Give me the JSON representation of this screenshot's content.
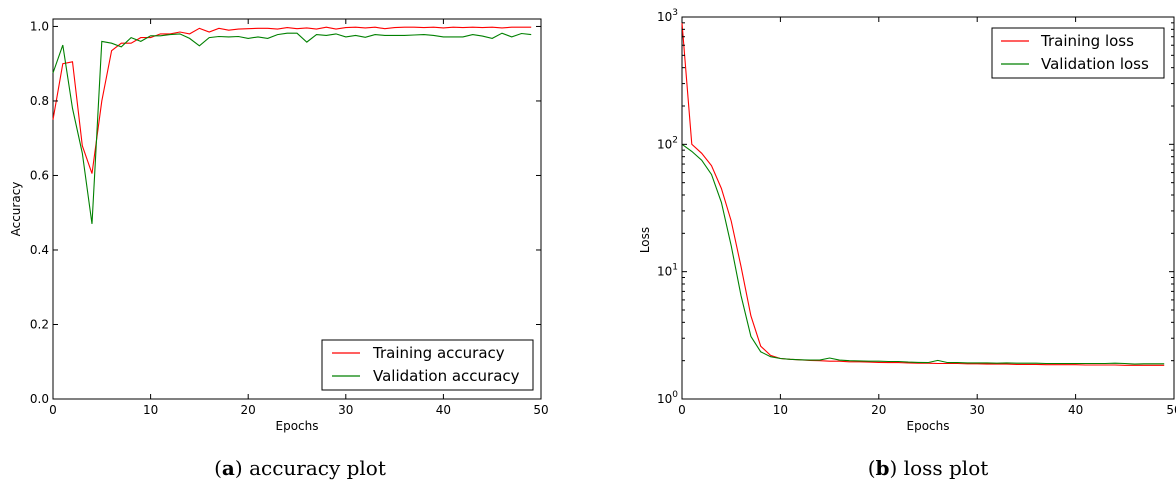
{
  "chart_data": [
    {
      "type": "line",
      "caption_letter": "a",
      "caption_text": "accuracy plot",
      "xlabel": "Epochs",
      "ylabel": "Accuracy",
      "xlim": [
        0,
        50
      ],
      "ylim": [
        0.0,
        1.02
      ],
      "y_scale": "linear",
      "x_ticks": [
        "0",
        "10",
        "20",
        "30",
        "40",
        "50"
      ],
      "x_tick_values": [
        0,
        10,
        20,
        30,
        40,
        50
      ],
      "y_ticks": [
        "0.0",
        "0.2",
        "0.4",
        "0.6",
        "0.8",
        "1.0"
      ],
      "y_tick_values": [
        0.0,
        0.2,
        0.4,
        0.6,
        0.8,
        1.0
      ],
      "grid": false,
      "legend_position": "bottom-right",
      "series": [
        {
          "name": "Training accuracy",
          "color": "#ff0000",
          "x": [
            0,
            1,
            2,
            3,
            4,
            5,
            6,
            7,
            8,
            9,
            10,
            11,
            12,
            13,
            14,
            15,
            16,
            17,
            18,
            19,
            20,
            21,
            22,
            23,
            24,
            25,
            26,
            27,
            28,
            29,
            30,
            31,
            32,
            33,
            34,
            35,
            36,
            37,
            38,
            39,
            40,
            41,
            42,
            43,
            44,
            45,
            46,
            47,
            48,
            49
          ],
          "values": [
            0.75,
            0.9,
            0.905,
            0.68,
            0.605,
            0.8,
            0.935,
            0.955,
            0.955,
            0.97,
            0.97,
            0.98,
            0.98,
            0.985,
            0.98,
            0.995,
            0.985,
            0.995,
            0.99,
            0.993,
            0.994,
            0.995,
            0.995,
            0.993,
            0.997,
            0.994,
            0.996,
            0.993,
            0.998,
            0.993,
            0.997,
            0.998,
            0.996,
            0.998,
            0.994,
            0.997,
            0.998,
            0.998,
            0.997,
            0.998,
            0.996,
            0.998,
            0.997,
            0.998,
            0.997,
            0.998,
            0.996,
            0.998,
            0.998,
            0.998
          ]
        },
        {
          "name": "Validation accuracy",
          "color": "#008000",
          "x": [
            0,
            1,
            2,
            3,
            4,
            5,
            6,
            7,
            8,
            9,
            10,
            11,
            12,
            13,
            14,
            15,
            16,
            17,
            18,
            19,
            20,
            21,
            22,
            23,
            24,
            25,
            26,
            27,
            28,
            29,
            30,
            31,
            32,
            33,
            34,
            35,
            36,
            37,
            38,
            39,
            40,
            41,
            42,
            43,
            44,
            45,
            46,
            47,
            48,
            49
          ],
          "values": [
            0.875,
            0.95,
            0.78,
            0.66,
            0.47,
            0.96,
            0.955,
            0.945,
            0.97,
            0.96,
            0.975,
            0.975,
            0.978,
            0.98,
            0.968,
            0.948,
            0.97,
            0.973,
            0.972,
            0.973,
            0.968,
            0.972,
            0.968,
            0.978,
            0.982,
            0.982,
            0.958,
            0.978,
            0.976,
            0.98,
            0.972,
            0.976,
            0.971,
            0.978,
            0.976,
            0.976,
            0.976,
            0.977,
            0.978,
            0.976,
            0.972,
            0.972,
            0.972,
            0.978,
            0.974,
            0.968,
            0.982,
            0.972,
            0.981,
            0.978
          ]
        }
      ]
    },
    {
      "type": "line",
      "caption_letter": "b",
      "caption_text": "loss plot",
      "xlabel": "Epochs",
      "ylabel": "Loss",
      "xlim": [
        0,
        50
      ],
      "ylim": [
        1,
        1000
      ],
      "y_scale": "log",
      "x_ticks": [
        "0",
        "10",
        "20",
        "30",
        "40",
        "50"
      ],
      "x_tick_values": [
        0,
        10,
        20,
        30,
        40,
        50
      ],
      "y_ticks": [
        {
          "base": "10",
          "exp": "0",
          "value": 1
        },
        {
          "base": "10",
          "exp": "1",
          "value": 10
        },
        {
          "base": "10",
          "exp": "2",
          "value": 100
        },
        {
          "base": "10",
          "exp": "3",
          "value": 1000
        }
      ],
      "grid": false,
      "legend_position": "top-right",
      "series": [
        {
          "name": "Training loss",
          "color": "#ff0000",
          "x": [
            0,
            1,
            2,
            3,
            4,
            5,
            6,
            7,
            8,
            9,
            10,
            11,
            12,
            13,
            14,
            15,
            16,
            17,
            18,
            19,
            20,
            21,
            22,
            23,
            24,
            25,
            26,
            27,
            28,
            29,
            30,
            31,
            32,
            33,
            34,
            35,
            36,
            37,
            38,
            39,
            40,
            41,
            42,
            43,
            44,
            45,
            46,
            47,
            48,
            49
          ],
          "values": [
            900,
            100,
            85,
            68,
            45,
            25,
            11,
            4.5,
            2.6,
            2.2,
            2.08,
            2.05,
            2.03,
            2.01,
            2.0,
            1.98,
            1.98,
            1.96,
            1.96,
            1.95,
            1.94,
            1.93,
            1.93,
            1.92,
            1.91,
            1.91,
            1.9,
            1.9,
            1.9,
            1.89,
            1.89,
            1.88,
            1.88,
            1.88,
            1.87,
            1.87,
            1.87,
            1.86,
            1.86,
            1.86,
            1.86,
            1.85,
            1.85,
            1.85,
            1.85,
            1.84,
            1.84,
            1.84,
            1.84,
            1.84
          ]
        },
        {
          "name": "Validation loss",
          "color": "#008000",
          "x": [
            0,
            1,
            2,
            3,
            4,
            5,
            6,
            7,
            8,
            9,
            10,
            11,
            12,
            13,
            14,
            15,
            16,
            17,
            18,
            19,
            20,
            21,
            22,
            23,
            24,
            25,
            26,
            27,
            28,
            29,
            30,
            31,
            32,
            33,
            34,
            35,
            36,
            37,
            38,
            39,
            40,
            41,
            42,
            43,
            44,
            45,
            46,
            47,
            48,
            49
          ],
          "values": [
            100,
            88,
            75,
            58,
            35,
            16,
            6.5,
            3.1,
            2.35,
            2.15,
            2.08,
            2.05,
            2.03,
            2.02,
            2.02,
            2.1,
            2.02,
            2.0,
            1.99,
            1.98,
            1.98,
            1.97,
            1.97,
            1.95,
            1.94,
            1.93,
            2.01,
            1.93,
            1.93,
            1.92,
            1.92,
            1.92,
            1.91,
            1.92,
            1.91,
            1.91,
            1.91,
            1.9,
            1.9,
            1.9,
            1.9,
            1.9,
            1.9,
            1.9,
            1.91,
            1.9,
            1.88,
            1.89,
            1.89,
            1.89
          ]
        }
      ]
    }
  ]
}
